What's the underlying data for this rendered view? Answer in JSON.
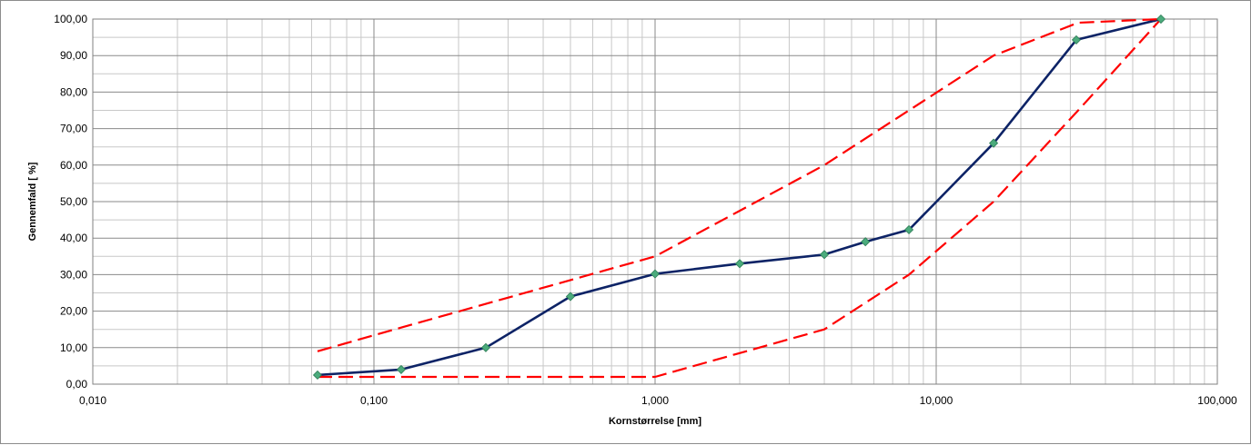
{
  "chart_data": {
    "type": "line",
    "title": "",
    "xlabel": "Kornstørrelse [mm]",
    "ylabel": "Gennemfald [ %]",
    "x_scale": "log",
    "xlim": [
      0.01,
      100
    ],
    "ylim": [
      0,
      100
    ],
    "x_tick_labels": [
      "0,010",
      "0,100",
      "1,000",
      "10,000",
      "100,000"
    ],
    "x_tick_values": [
      0.01,
      0.1,
      1,
      10,
      100
    ],
    "y_tick_labels": [
      "0,00",
      "10,00",
      "20,00",
      "30,00",
      "40,00",
      "50,00",
      "60,00",
      "70,00",
      "80,00",
      "90,00",
      "100,00"
    ],
    "y_tick_values": [
      0,
      10,
      20,
      30,
      40,
      50,
      60,
      70,
      80,
      90,
      100
    ],
    "grid": true,
    "legend": "none",
    "series": [
      {
        "style": "solid-with-markers",
        "color": "#0d2366",
        "marker_color": "#4bab7c",
        "x": [
          0.063,
          0.125,
          0.25,
          0.5,
          1,
          2,
          4,
          5.6,
          8,
          16,
          31.5,
          63
        ],
        "y": [
          2.5,
          4,
          10,
          24,
          30.2,
          33,
          35.5,
          39,
          42.3,
          66,
          94.3,
          100
        ]
      },
      {
        "style": "dashed",
        "color": "#ff0000",
        "x": [
          0.063,
          0.125,
          0.25,
          0.5,
          1,
          2,
          4,
          8,
          16,
          32,
          63
        ],
        "y": [
          9,
          15.5,
          22,
          28.5,
          35,
          47.5,
          60,
          75,
          90,
          99,
          100
        ]
      },
      {
        "style": "dashed",
        "color": "#ff0000",
        "x": [
          0.063,
          0.125,
          0.25,
          0.5,
          1,
          2,
          4,
          8,
          16,
          32,
          63
        ],
        "y": [
          2,
          2,
          2,
          2,
          2,
          8.5,
          15,
          30,
          50,
          75,
          100
        ]
      }
    ]
  }
}
